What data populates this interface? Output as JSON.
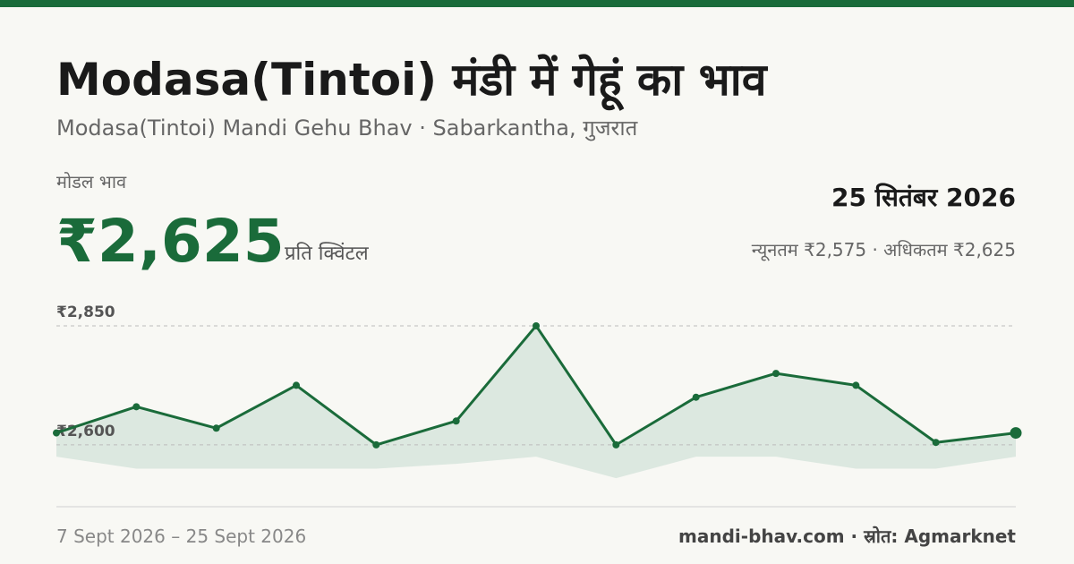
{
  "header": {
    "title": "Modasa(Tintoi) मंडी में गेहूं का भाव",
    "subtitle": "Modasa(Tintoi) Mandi Gehu Bhav · Sabarkantha, गुजरात",
    "modal_label": "मोडल भाव",
    "modal_price": "₹2,625",
    "unit": "प्रति क्विंटल",
    "date": "25 सितंबर 2026",
    "range": "न्यूनतम ₹2,575 · अधिकतम ₹2,625"
  },
  "chart_data": {
    "type": "line",
    "series": [
      {
        "color": "#1a6b3a",
        "values": [
          2625,
          2680,
          2635,
          2725,
          2600,
          2650,
          2850,
          2600,
          2700,
          2750,
          2725,
          2605,
          2625
        ]
      }
    ],
    "band": {
      "color": "#dce8e0",
      "values": [
        2575,
        2550,
        2550,
        2550,
        2550,
        2560,
        2575,
        2530,
        2575,
        2575,
        2550,
        2550,
        2575
      ]
    },
    "ylim": [
      2470,
      2880
    ],
    "yticks": [
      {
        "value": 2600,
        "label": "₹2,600"
      },
      {
        "value": 2850,
        "label": "₹2,850"
      }
    ],
    "grid": true
  },
  "footer": {
    "period": "7 Sept 2026 – 25 Sept 2026",
    "source": "mandi-bhav.com · स्रोत: Agmarknet"
  }
}
